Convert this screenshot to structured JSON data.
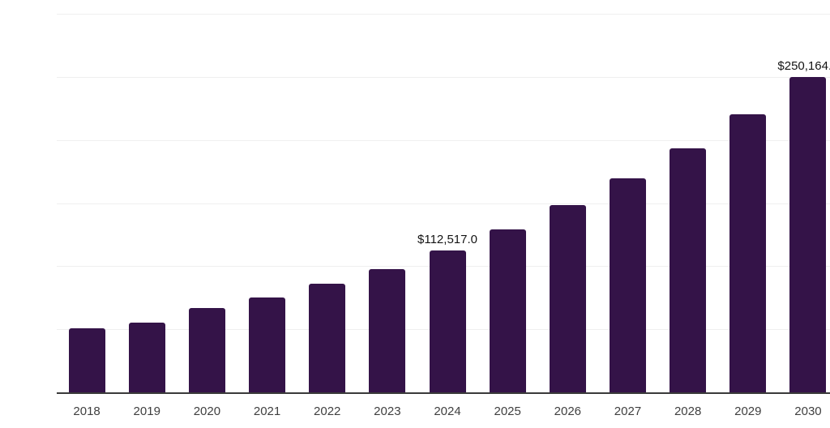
{
  "chart_data": {
    "type": "bar",
    "title": "",
    "xlabel": "",
    "ylabel": "",
    "categories": [
      "2018",
      "2019",
      "2020",
      "2021",
      "2022",
      "2023",
      "2024",
      "2025",
      "2026",
      "2027",
      "2028",
      "2029",
      "2030"
    ],
    "values": [
      51000,
      55400,
      66700,
      75000,
      86100,
      97600,
      112517.0,
      129400,
      148200,
      169600,
      193600,
      220200,
      250164.5
    ],
    "value_labels": [
      null,
      null,
      null,
      null,
      null,
      null,
      "$112,517.0",
      null,
      null,
      null,
      null,
      null,
      "$250,164.5"
    ],
    "ylim": [
      0,
      300000
    ],
    "gridline_step": 50000,
    "grid": "horizontal",
    "legend_position": "none",
    "colors": {
      "bar": "#341348",
      "gridline": "#efefef",
      "axis": "#3a3a3a",
      "tick_label": "#3f3f3f",
      "value_label": "#141414",
      "background": "#ffffff"
    }
  }
}
